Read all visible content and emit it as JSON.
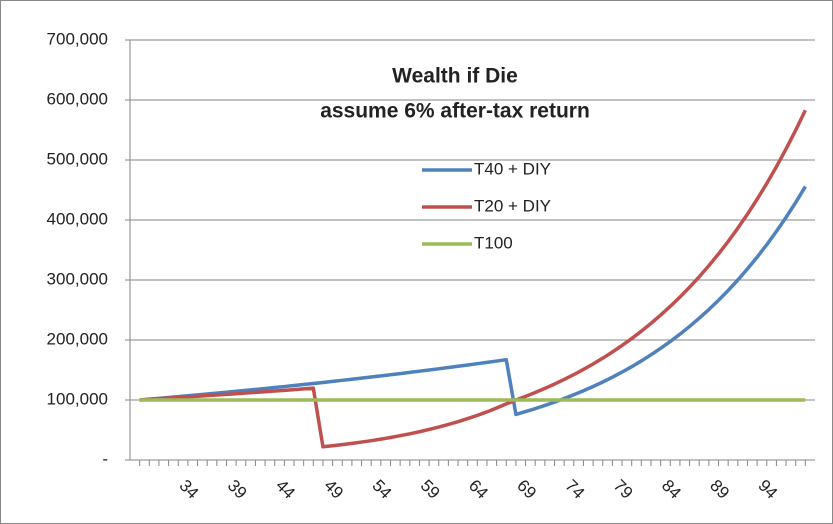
{
  "chart_data": {
    "type": "line",
    "title": "Wealth if Die",
    "subtitle": "assume 6% after-tax return",
    "x": [
      30,
      31,
      32,
      33,
      34,
      35,
      36,
      37,
      38,
      39,
      40,
      41,
      42,
      43,
      44,
      45,
      46,
      47,
      48,
      49,
      50,
      51,
      52,
      53,
      54,
      55,
      56,
      57,
      58,
      59,
      60,
      61,
      62,
      63,
      64,
      65,
      66,
      67,
      68,
      69,
      70,
      71,
      72,
      73,
      74,
      75,
      76,
      77,
      78,
      79,
      80,
      81,
      82,
      83,
      84,
      85,
      86,
      87,
      88,
      89,
      90,
      91,
      92,
      93,
      94,
      95,
      96,
      97,
      98,
      99
    ],
    "xlim": [
      29,
      100
    ],
    "xticks": [
      34,
      39,
      44,
      49,
      54,
      59,
      64,
      69,
      74,
      79,
      84,
      89,
      94
    ],
    "ylim": [
      0,
      700000
    ],
    "yticks": [
      {
        "value": 0,
        "label": "-"
      },
      {
        "value": 100000,
        "label": "100,000"
      },
      {
        "value": 200000,
        "label": "200,000"
      },
      {
        "value": 300000,
        "label": "300,000"
      },
      {
        "value": 400000,
        "label": "400,000"
      },
      {
        "value": 500000,
        "label": "500,000"
      },
      {
        "value": 600000,
        "label": "600,000"
      },
      {
        "value": 700000,
        "label": "700,000"
      }
    ],
    "grid": true,
    "series": [
      {
        "name": "T40 + DIY",
        "color": "#4f81bd",
        "values": [
          100000,
          101400,
          102800,
          104200,
          105600,
          107000,
          108500,
          110000,
          111500,
          113000,
          114500,
          116000,
          117600,
          119200,
          120800,
          122400,
          124100,
          125800,
          127500,
          129200,
          131000,
          132800,
          134600,
          136400,
          138300,
          140200,
          142100,
          144000,
          146000,
          148000,
          150000,
          152000,
          154100,
          156200,
          158300,
          160500,
          162700,
          164900,
          167200,
          76000,
          80700,
          85600,
          90900,
          96500,
          102400,
          108700,
          115400,
          122500,
          130000,
          138000,
          146500,
          155500,
          165100,
          175300,
          186100,
          197500,
          209700,
          222600,
          236300,
          250800,
          266200,
          282600,
          300000,
          318500,
          338100,
          358900,
          381000,
          404400,
          429300,
          455700
        ]
      },
      {
        "name": "T20 + DIY",
        "color": "#c0504d",
        "values": [
          100000,
          101000,
          102000,
          103100,
          104100,
          105100,
          106200,
          107300,
          108300,
          109400,
          110500,
          111600,
          112700,
          113800,
          115000,
          116100,
          117300,
          118500,
          119700,
          22000,
          23700,
          25600,
          27700,
          29900,
          32200,
          34800,
          37500,
          40500,
          43700,
          47100,
          50900,
          54900,
          59200,
          63900,
          69000,
          74400,
          80300,
          86700,
          93500,
          100000,
          106000,
          112500,
          119300,
          126500,
          134200,
          142300,
          150900,
          160000,
          169700,
          180000,
          190900,
          202400,
          214700,
          227700,
          241500,
          256100,
          271600,
          288000,
          305400,
          323900,
          343500,
          364300,
          386400,
          409800,
          434600,
          460900,
          488800,
          518400,
          549700,
          583000
        ]
      },
      {
        "name": "T100",
        "color": "#9bbb59",
        "values": [
          100000,
          100000,
          100000,
          100000,
          100000,
          100000,
          100000,
          100000,
          100000,
          100000,
          100000,
          100000,
          100000,
          100000,
          100000,
          100000,
          100000,
          100000,
          100000,
          100000,
          100000,
          100000,
          100000,
          100000,
          100000,
          100000,
          100000,
          100000,
          100000,
          100000,
          100000,
          100000,
          100000,
          100000,
          100000,
          100000,
          100000,
          100000,
          100000,
          100000,
          100000,
          100000,
          100000,
          100000,
          100000,
          100000,
          100000,
          100000,
          100000,
          100000,
          100000,
          100000,
          100000,
          100000,
          100000,
          100000,
          100000,
          100000,
          100000,
          100000,
          100000,
          100000,
          100000,
          100000,
          100000,
          100000,
          100000,
          100000,
          100000,
          100000
        ]
      }
    ]
  }
}
